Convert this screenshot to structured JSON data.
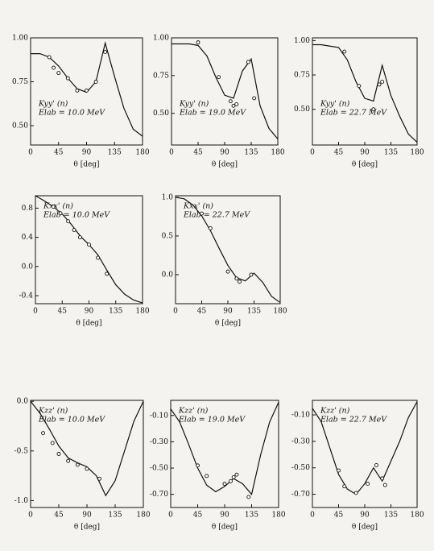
{
  "chart_data": [
    {
      "type": "line",
      "annotations": [
        "Kyy' (n)",
        "Elab = 10.0 MeV"
      ],
      "xlabel": "θ [deg]",
      "xlim": [
        0,
        180
      ],
      "xticks": [
        0,
        45,
        90,
        135,
        180
      ],
      "ylim": [
        0.39,
        1.0
      ],
      "yticks": [
        {
          "value": 0.5,
          "label": "0.50"
        },
        {
          "value": 0.75,
          "label": "0.75"
        },
        {
          "value": 1.0,
          "label": "1.00"
        }
      ],
      "series": [
        {
          "style": "curve",
          "color": "#111",
          "x": [
            0,
            15,
            30,
            45,
            60,
            75,
            90,
            105,
            120,
            135,
            150,
            165,
            180
          ],
          "values": [
            0.91,
            0.91,
            0.89,
            0.84,
            0.77,
            0.71,
            0.69,
            0.75,
            0.97,
            0.78,
            0.6,
            0.48,
            0.44
          ]
        },
        {
          "style": "points",
          "color": "#111",
          "x": [
            30,
            37,
            45,
            60,
            75,
            90,
            105,
            120
          ],
          "values": [
            0.89,
            0.83,
            0.8,
            0.77,
            0.7,
            0.7,
            0.75,
            0.92
          ]
        }
      ]
    },
    {
      "type": "line",
      "annotations": [
        "Kyy' (n)",
        "Elab = 19.0 MeV"
      ],
      "xlabel": "θ [deg]",
      "xlim": [
        0,
        180
      ],
      "xticks": [
        0,
        45,
        90,
        135,
        180
      ],
      "ylim": [
        0.29,
        1.0
      ],
      "yticks": [
        {
          "value": 0.5,
          "label": "0.50"
        },
        {
          "value": 0.75,
          "label": "0.75"
        },
        {
          "value": 1.0,
          "label": "1.00"
        }
      ],
      "series": [
        {
          "style": "curve",
          "color": "#111",
          "x": [
            0,
            15,
            30,
            45,
            60,
            75,
            90,
            105,
            120,
            135,
            150,
            165,
            180
          ],
          "values": [
            0.96,
            0.96,
            0.96,
            0.95,
            0.88,
            0.74,
            0.62,
            0.6,
            0.78,
            0.86,
            0.55,
            0.4,
            0.33
          ]
        },
        {
          "style": "points",
          "color": "#111",
          "x": [
            45,
            80,
            100,
            105,
            110,
            130,
            140
          ],
          "values": [
            0.97,
            0.74,
            0.58,
            0.55,
            0.56,
            0.84,
            0.6
          ]
        }
      ]
    },
    {
      "type": "line",
      "annotations": [
        "Kyy' (n)",
        "Elab = 22.7 MeV"
      ],
      "xlabel": "θ [deg]",
      "xlim": [
        0,
        180
      ],
      "xticks": [
        0,
        45,
        90,
        135,
        180
      ],
      "ylim": [
        0.24,
        1.02
      ],
      "yticks": [
        {
          "value": 0.5,
          "label": "0.50"
        },
        {
          "value": 0.75,
          "label": "0.75"
        },
        {
          "value": 1.0,
          "label": "1.00"
        }
      ],
      "series": [
        {
          "style": "curve",
          "color": "#111",
          "x": [
            0,
            15,
            30,
            45,
            60,
            75,
            90,
            105,
            120,
            135,
            150,
            165,
            180
          ],
          "values": [
            0.97,
            0.97,
            0.96,
            0.95,
            0.86,
            0.7,
            0.58,
            0.56,
            0.82,
            0.6,
            0.45,
            0.32,
            0.26
          ]
        },
        {
          "style": "points",
          "color": "#111",
          "x": [
            55,
            80,
            105,
            115,
            120
          ],
          "values": [
            0.92,
            0.67,
            0.5,
            0.68,
            0.7
          ]
        }
      ]
    },
    {
      "type": "line",
      "annotations": [
        "Kxx' (n)",
        "Elab = 10.0 MeV"
      ],
      "xlabel": "θ [deg]",
      "xlim": [
        0,
        180
      ],
      "xticks": [
        0,
        45,
        90,
        135,
        180
      ],
      "ylim": [
        -0.51,
        0.97
      ],
      "yticks": [
        0.8,
        0.4,
        {
          "value": 0,
          "label": "0.0"
        },
        -0.4
      ],
      "series": [
        {
          "style": "curve",
          "color": "#111",
          "x": [
            0,
            15,
            30,
            45,
            60,
            75,
            90,
            105,
            120,
            135,
            150,
            165,
            180
          ],
          "values": [
            0.97,
            0.9,
            0.82,
            0.72,
            0.58,
            0.42,
            0.3,
            0.16,
            -0.05,
            -0.25,
            -0.38,
            -0.46,
            -0.5
          ]
        },
        {
          "style": "points",
          "color": "#111",
          "x": [
            30,
            42,
            55,
            65,
            75,
            90,
            105,
            120
          ],
          "values": [
            0.82,
            0.73,
            0.62,
            0.5,
            0.4,
            0.3,
            0.12,
            -0.1
          ]
        }
      ]
    },
    {
      "type": "line",
      "annotations": [
        "Kxx' (n)",
        "Elab = 22.7 MeV"
      ],
      "xlabel": "θ [deg]",
      "xlim": [
        0,
        180
      ],
      "xticks": [
        0,
        45,
        90,
        135,
        180
      ],
      "ylim": [
        -0.375,
        1.02
      ],
      "yticks": [
        {
          "value": 1,
          "label": "1.0"
        },
        0.5,
        {
          "value": 0,
          "label": "0.0"
        }
      ],
      "series": [
        {
          "style": "curve",
          "color": "#111",
          "x": [
            0,
            15,
            30,
            45,
            60,
            75,
            90,
            105,
            120,
            135,
            150,
            165,
            180
          ],
          "values": [
            1.0,
            0.98,
            0.9,
            0.76,
            0.57,
            0.34,
            0.12,
            -0.04,
            -0.08,
            0.02,
            -0.1,
            -0.28,
            -0.36
          ]
        },
        {
          "style": "points",
          "color": "#111",
          "x": [
            45,
            60,
            90,
            105,
            110,
            130
          ],
          "values": [
            0.79,
            0.6,
            0.04,
            -0.05,
            -0.09,
            0.0
          ]
        }
      ]
    },
    {
      "type": "line",
      "annotations": [
        "Kzz' (n)",
        "Elab = 10.0 MeV"
      ],
      "xlabel": "θ [deg]",
      "xlim": [
        0,
        180
      ],
      "xticks": [
        0,
        45,
        90,
        135,
        180
      ],
      "ylim": [
        -1.07,
        0.01
      ],
      "yticks": [
        {
          "value": 0,
          "label": "0.0"
        },
        -0.5,
        {
          "value": -1,
          "label": "-1.0"
        }
      ],
      "series": [
        {
          "style": "curve",
          "color": "#111",
          "x": [
            0,
            15,
            30,
            45,
            60,
            75,
            90,
            105,
            120,
            135,
            150,
            165,
            180
          ],
          "values": [
            0.0,
            -0.12,
            -0.28,
            -0.45,
            -0.57,
            -0.62,
            -0.66,
            -0.75,
            -0.95,
            -0.8,
            -0.5,
            -0.2,
            0.0
          ]
        },
        {
          "style": "points",
          "color": "#111",
          "x": [
            20,
            35,
            45,
            60,
            75,
            90,
            110
          ],
          "values": [
            -0.32,
            -0.42,
            -0.53,
            -0.6,
            -0.64,
            -0.68,
            -0.78
          ]
        }
      ]
    },
    {
      "type": "line",
      "annotations": [
        "Kzz' (n)",
        "Elab = 19.0 MeV"
      ],
      "xlabel": "θ [deg]",
      "xlim": [
        0,
        180
      ],
      "xticks": [
        0,
        45,
        90,
        135,
        180
      ],
      "ylim": [
        -0.8,
        0.015
      ],
      "yticks": [
        {
          "value": -0.1,
          "label": "-0.10"
        },
        {
          "value": -0.3,
          "label": "-0.30"
        },
        {
          "value": -0.5,
          "label": "-0.50"
        },
        {
          "value": -0.7,
          "label": "-0.70"
        }
      ],
      "series": [
        {
          "style": "curve",
          "color": "#111",
          "x": [
            0,
            15,
            30,
            45,
            60,
            75,
            90,
            105,
            120,
            135,
            150,
            165,
            180
          ],
          "values": [
            -0.05,
            -0.15,
            -0.32,
            -0.5,
            -0.63,
            -0.68,
            -0.64,
            -0.58,
            -0.62,
            -0.7,
            -0.4,
            -0.15,
            0.0
          ]
        },
        {
          "style": "points",
          "color": "#111",
          "x": [
            45,
            60,
            90,
            100,
            105,
            110,
            130
          ],
          "values": [
            -0.48,
            -0.56,
            -0.62,
            -0.6,
            -0.57,
            -0.55,
            -0.72
          ]
        }
      ]
    },
    {
      "type": "line",
      "annotations": [
        "Kzz' (n)",
        "Elab = 22.7 MeV"
      ],
      "xlabel": "θ [deg]",
      "xlim": [
        0,
        180
      ],
      "xticks": [
        0,
        45,
        90,
        135,
        180
      ],
      "ylim": [
        -0.8,
        0.01
      ],
      "yticks": [
        {
          "value": -0.1,
          "label": "-0.10"
        },
        {
          "value": -0.3,
          "label": "-0.30"
        },
        {
          "value": -0.5,
          "label": "-0.50"
        },
        {
          "value": -0.7,
          "label": "-0.70"
        }
      ],
      "series": [
        {
          "style": "curve",
          "color": "#111",
          "x": [
            0,
            15,
            30,
            45,
            60,
            75,
            90,
            105,
            120,
            135,
            150,
            165,
            180
          ],
          "values": [
            -0.05,
            -0.15,
            -0.35,
            -0.55,
            -0.66,
            -0.7,
            -0.62,
            -0.5,
            -0.6,
            -0.45,
            -0.3,
            -0.12,
            0.0
          ]
        },
        {
          "style": "points",
          "color": "#111",
          "x": [
            45,
            55,
            75,
            95,
            110,
            120,
            125
          ],
          "values": [
            -0.52,
            -0.64,
            -0.69,
            -0.62,
            -0.48,
            -0.58,
            -0.63
          ]
        }
      ]
    }
  ]
}
